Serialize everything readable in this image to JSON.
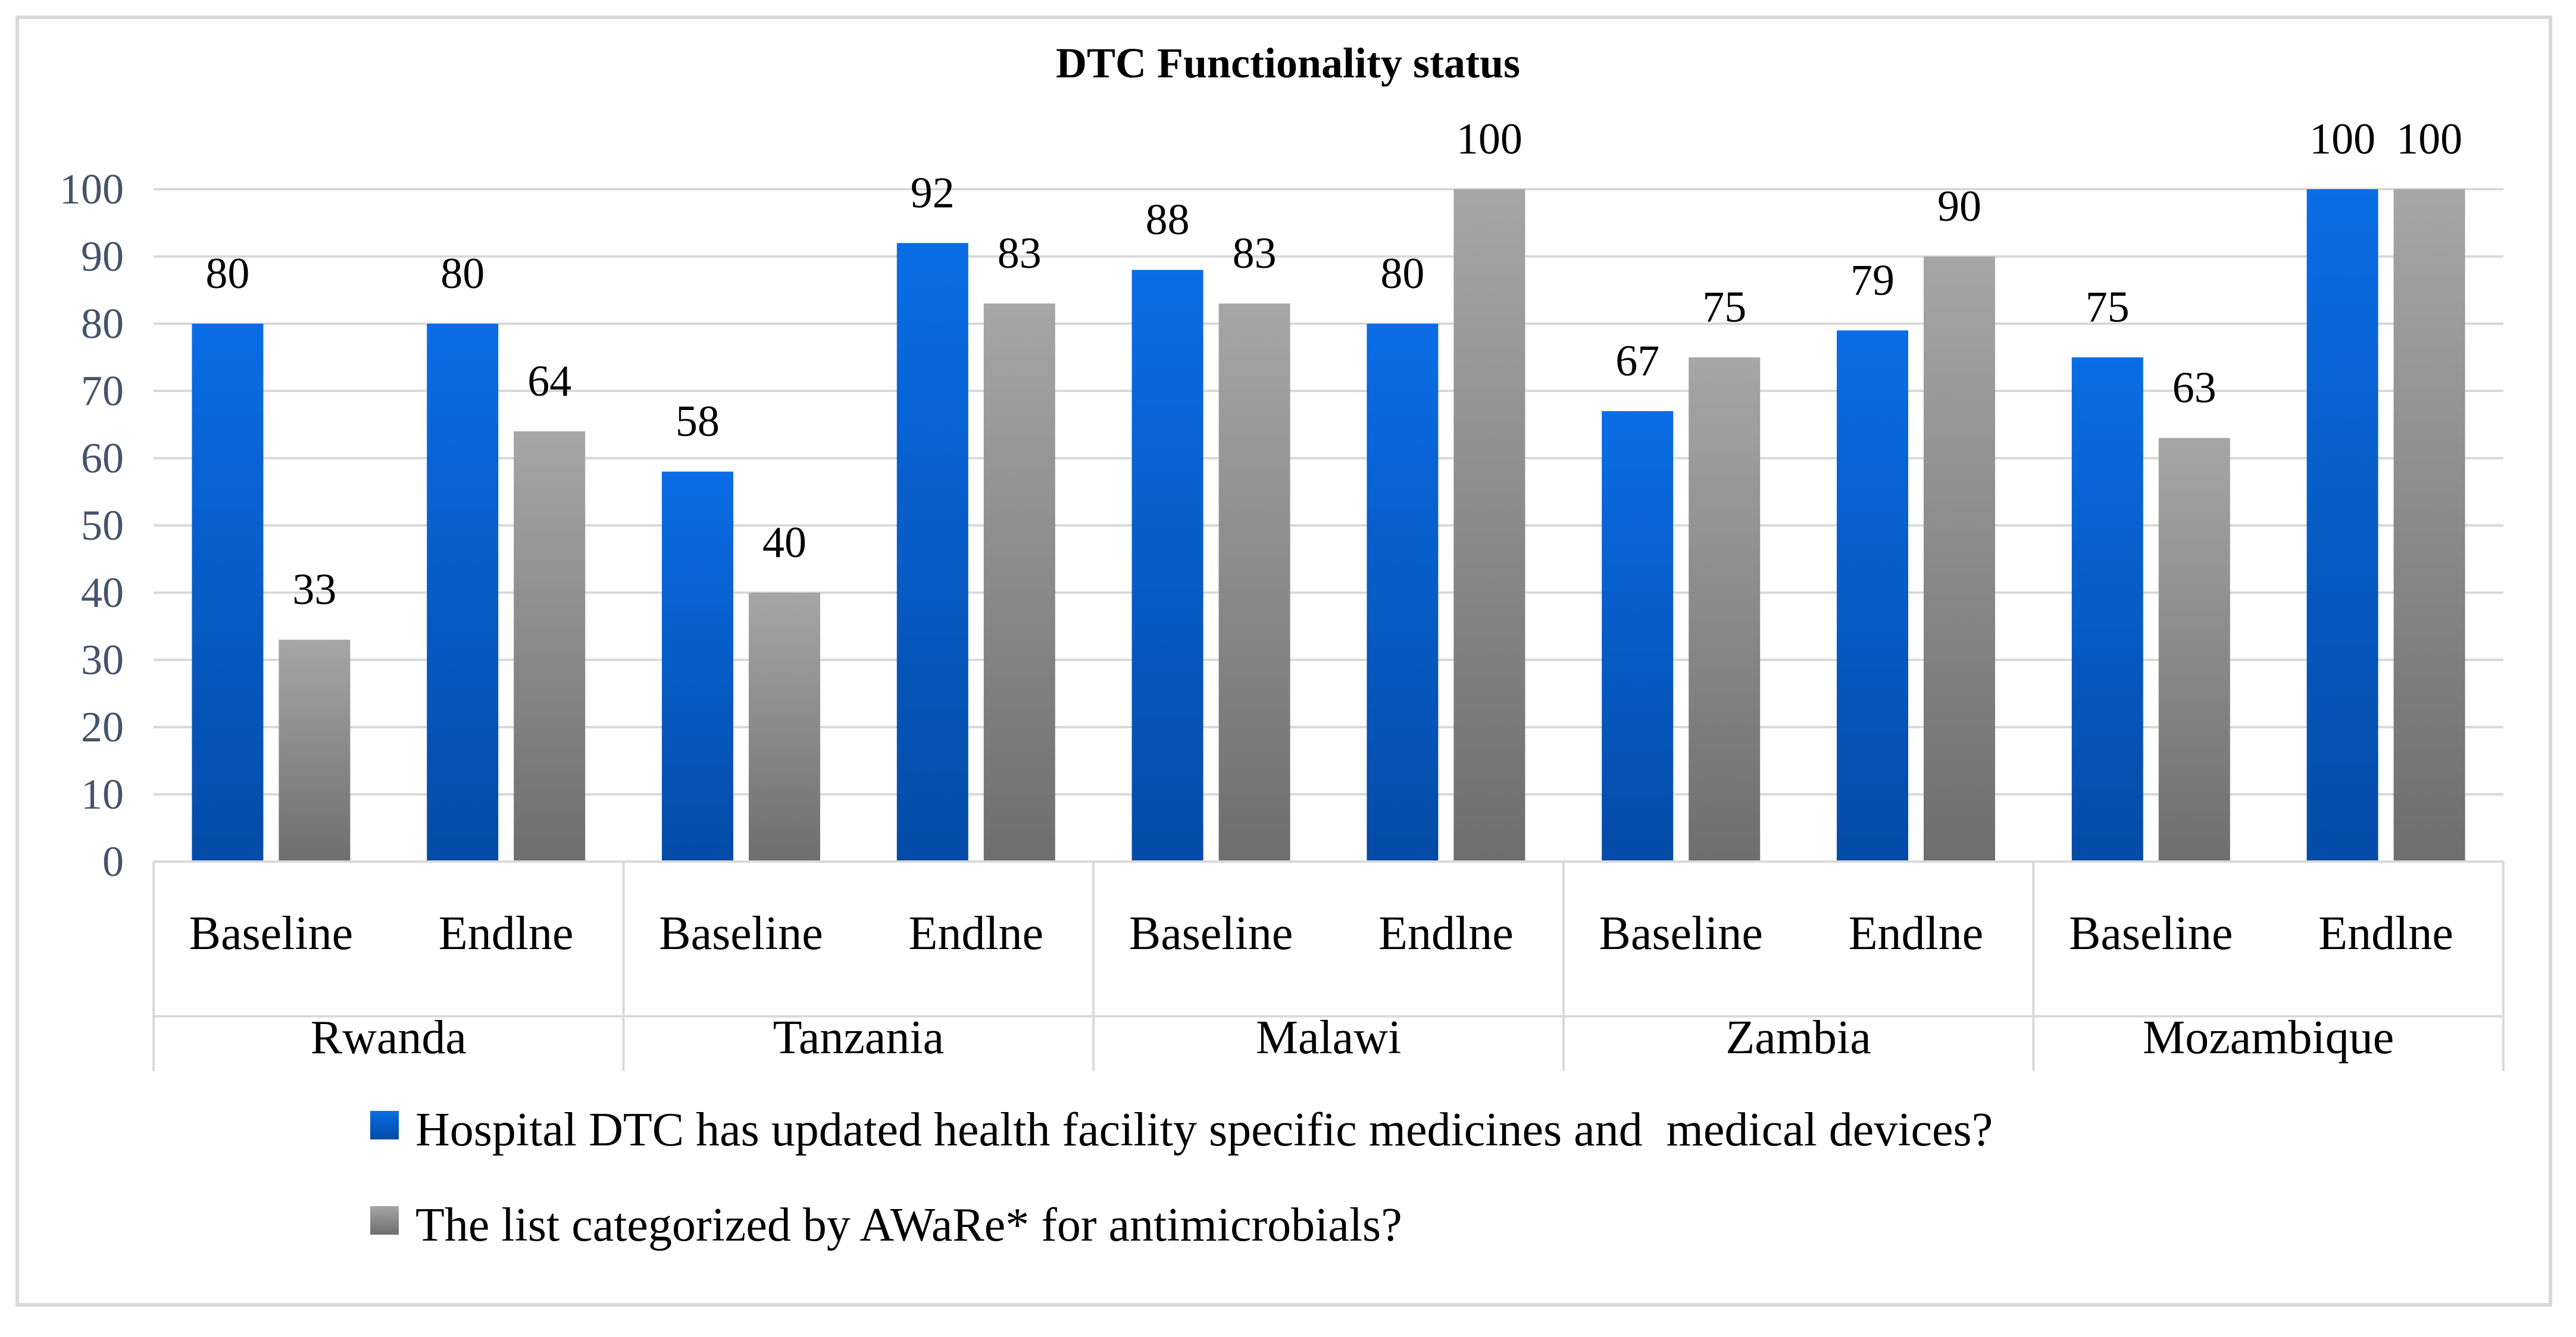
{
  "chart_data": {
    "type": "bar",
    "title": "DTC Functionality status",
    "groups": [
      {
        "name": "Rwanda",
        "categories": [
          "Baseline",
          "Endlne"
        ]
      },
      {
        "name": "Tanzania",
        "categories": [
          "Baseline",
          "Endlne"
        ]
      },
      {
        "name": "Malawi",
        "categories": [
          "Baseline",
          "Endlne"
        ]
      },
      {
        "name": "Zambia",
        "categories": [
          "Baseline",
          "Endlne"
        ]
      },
      {
        "name": "Mozambique",
        "categories": [
          "Baseline",
          "Endlne"
        ]
      }
    ],
    "series": [
      {
        "name": "Hospital DTC has updated health facility specific medicines and  medical devices?",
        "color": "#0b5ed1",
        "values": [
          80,
          80,
          58,
          92,
          88,
          80,
          67,
          79,
          75,
          100
        ]
      },
      {
        "name": "The list categorized by AWaRe* for antimicrobials?",
        "color": "#8c8c8c",
        "values": [
          33,
          64,
          40,
          83,
          83,
          100,
          75,
          90,
          63,
          100
        ]
      }
    ],
    "ylim": [
      0,
      100
    ],
    "yticks": [
      0,
      10,
      20,
      30,
      40,
      50,
      60,
      70,
      80,
      90,
      100
    ],
    "grid": true,
    "legend": "bottom",
    "xlabel": "",
    "ylabel": ""
  }
}
